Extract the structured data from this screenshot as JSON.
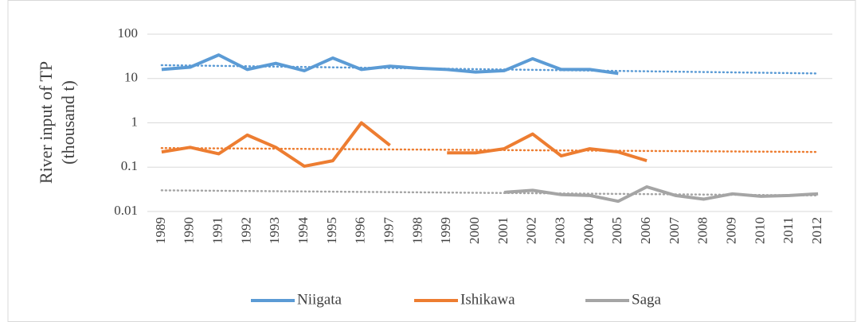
{
  "chart_data": {
    "type": "line",
    "ylabel": [
      "River input of TP",
      "(thousand t)"
    ],
    "categories": [
      "1989",
      "1990",
      "1991",
      "1992",
      "1993",
      "1994",
      "1995",
      "1996",
      "1997",
      "1998",
      "1999",
      "2000",
      "2001",
      "2002",
      "2003",
      "2004",
      "2005",
      "2006",
      "2007",
      "2008",
      "2009",
      "2010",
      "2011",
      "2012"
    ],
    "log_scale": true,
    "grid": true,
    "legend": "bottom",
    "ylim": [
      0.01,
      100
    ],
    "yticks": [
      0.01,
      0.1,
      1,
      10,
      100
    ],
    "series": [
      {
        "name": "Niigata",
        "color": "#5b9bd5",
        "values": [
          16,
          18,
          34,
          16,
          22,
          15,
          29,
          16,
          19,
          17,
          16,
          14,
          15,
          28,
          16,
          16,
          13,
          null,
          null,
          null,
          null,
          null,
          null,
          null
        ],
        "trend": [
          20,
          13
        ]
      },
      {
        "name": "Ishikawa",
        "color": "#ed7d31",
        "values": [
          0.22,
          0.28,
          0.2,
          0.53,
          0.28,
          0.105,
          0.14,
          1.0,
          0.31,
          null,
          0.21,
          0.21,
          0.26,
          0.56,
          0.18,
          0.26,
          0.22,
          0.14,
          null,
          null,
          null,
          null,
          null,
          null
        ],
        "trend": [
          0.27,
          0.22
        ]
      },
      {
        "name": "Saga",
        "color": "#a5a5a5",
        "values": [
          null,
          null,
          null,
          null,
          null,
          null,
          null,
          null,
          null,
          null,
          null,
          null,
          0.027,
          0.03,
          0.024,
          0.023,
          0.017,
          0.036,
          0.023,
          0.019,
          0.025,
          0.022,
          0.023,
          0.025
        ],
        "trend": [
          0.03,
          0.023
        ]
      }
    ]
  }
}
